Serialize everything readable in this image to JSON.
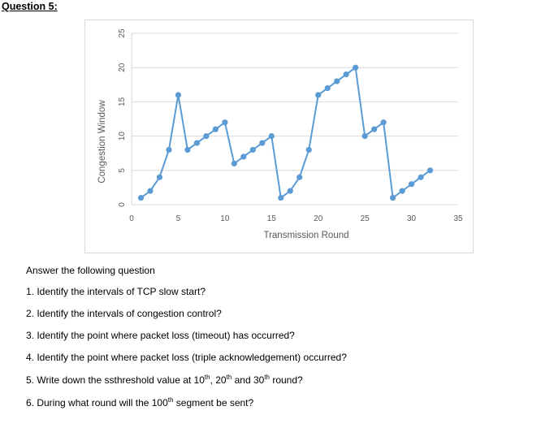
{
  "heading": "Question 5:",
  "chart_data": {
    "type": "line",
    "title": "",
    "xlabel": "Transmission Round",
    "ylabel": "Congestion Window",
    "xlim": [
      0,
      35
    ],
    "ylim": [
      0,
      25
    ],
    "x_ticks": [
      0,
      5,
      10,
      15,
      20,
      25,
      30,
      35
    ],
    "y_ticks": [
      0,
      5,
      10,
      15,
      20,
      25
    ],
    "grid": true,
    "legend": "none",
    "line_color": "#5b9bd5",
    "series": [
      {
        "x": [
          1,
          2,
          3,
          4,
          5,
          6,
          7,
          8,
          9,
          10,
          11,
          12,
          13,
          14,
          15,
          16,
          17,
          18,
          19,
          20,
          21,
          22,
          23,
          24,
          25,
          26,
          27,
          28,
          29,
          30,
          31,
          32
        ],
        "values": [
          1,
          2,
          4,
          8,
          16,
          8,
          9,
          10,
          11,
          12,
          6,
          7,
          8,
          9,
          10,
          1,
          2,
          4,
          8,
          16,
          17,
          18,
          19,
          20,
          10,
          11,
          12,
          1,
          2,
          3,
          4,
          5
        ]
      }
    ]
  },
  "questions": {
    "intro": "Answer the following question",
    "q1": "1. Identify the intervals of TCP slow start?",
    "q2": "2. Identify the intervals of congestion control?",
    "q3": "3. Identify the point where packet loss (timeout) has occurred?",
    "q4": "4. Identify the point where packet loss (triple acknowledgement) occurred?",
    "q5": {
      "before": "5. Write down the ssthreshold value at 10",
      "sup1": "th",
      "mid1": ", 20",
      "sup2": "th",
      "mid2": " and 30",
      "sup3": "th",
      "after": " round?"
    },
    "q6": {
      "before": "6. During what round will the 100",
      "sup": "th",
      "after": " segment be sent?"
    }
  }
}
